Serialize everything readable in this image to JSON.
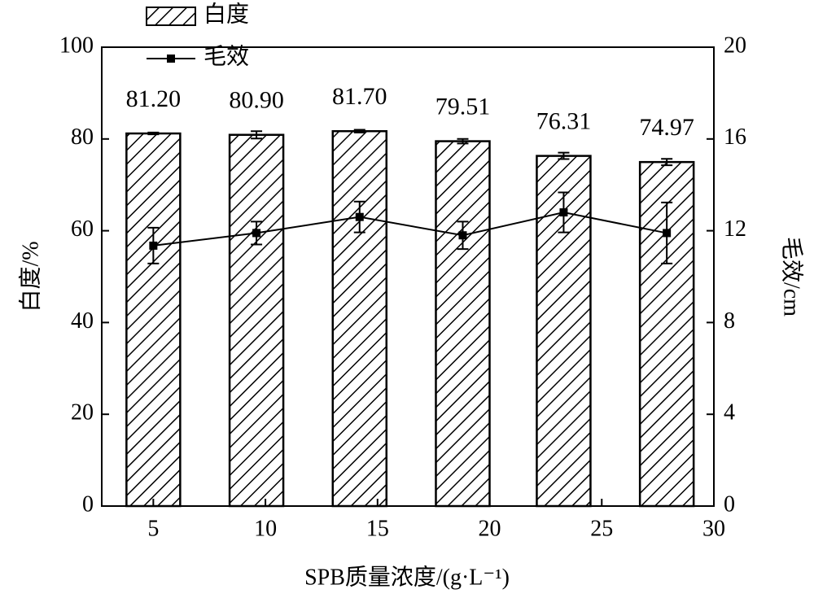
{
  "chart_data": {
    "type": "bar",
    "x": [
      5,
      9.6,
      14.2,
      18.8,
      23.3,
      27.9
    ],
    "xlim": [
      2.7,
      30
    ],
    "xticks": [
      5,
      10,
      15,
      20,
      25,
      30
    ],
    "ylim": [
      0,
      100
    ],
    "yticks": [
      0,
      20,
      40,
      60,
      80,
      100
    ],
    "y2lim": [
      0,
      20
    ],
    "y2ticks": [
      0,
      4,
      8,
      12,
      16,
      20
    ],
    "xlabel": "SPB质量浓度/(g·L⁻¹)",
    "ylabel": "白度/%",
    "y2label": "毛效/cm",
    "legend": "top-left",
    "series": [
      {
        "name": "白度",
        "type": "bar",
        "color": "#000000",
        "values": [
          81.2,
          80.9,
          81.7,
          79.51,
          76.31,
          74.97
        ],
        "value_labels": [
          "81.20",
          "80.90",
          "81.70",
          "79.51",
          "76.31",
          "74.97"
        ],
        "errors": [
          0.2,
          0.8,
          0.3,
          0.5,
          0.7,
          0.7
        ]
      },
      {
        "name": "毛效",
        "type": "line",
        "axis": "y2",
        "color": "#000000",
        "values": [
          11.35,
          11.9,
          12.6,
          11.8,
          12.8,
          11.9
        ],
        "errors": [
          0.78,
          0.5,
          0.67,
          0.6,
          0.87,
          1.33
        ]
      }
    ]
  }
}
